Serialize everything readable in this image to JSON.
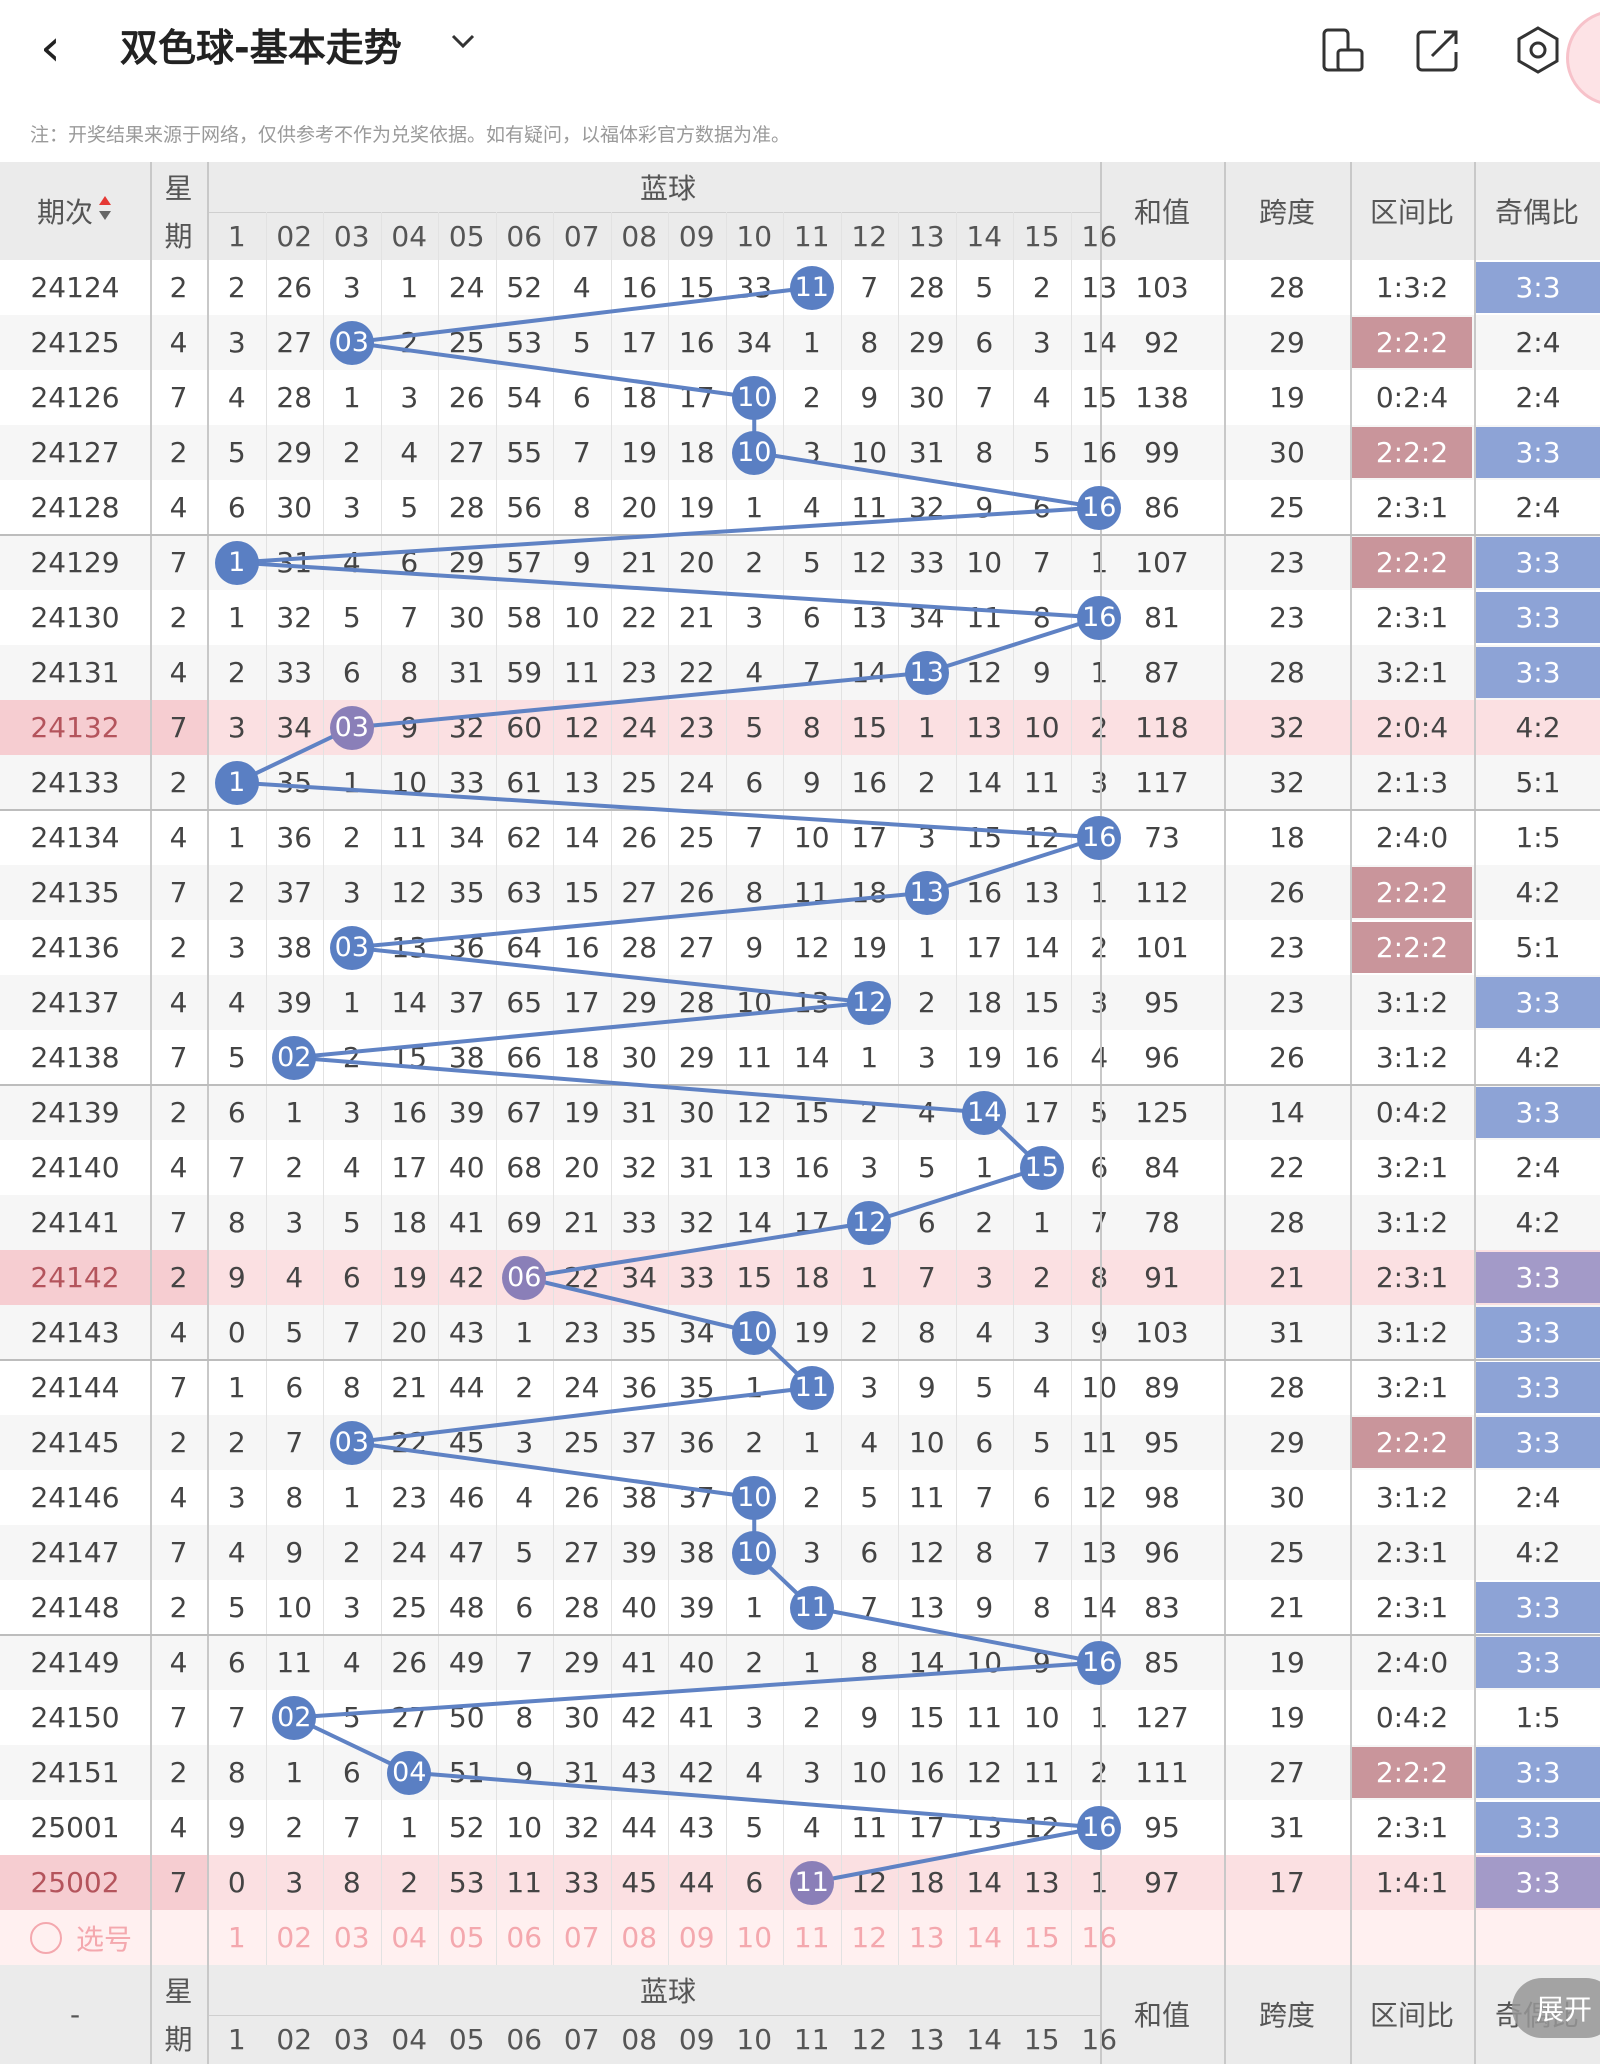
{
  "header": {
    "back_glyph": "‹",
    "title": "双色球-基本走势",
    "icons": [
      "screen-rotate-icon",
      "share-icon",
      "settings-icon",
      "avatar"
    ]
  },
  "note": "注：开奖结果来源于网络，仅供参考不作为兑奖依据。如有疑问，以福体彩官方数据为准。",
  "table": {
    "col_period": "期次",
    "col_week": [
      "星",
      "期"
    ],
    "col_blue": "蓝球",
    "col_sum": "和值",
    "col_span": "跨度",
    "col_zone": "区间比",
    "col_oddeven": "奇偶比",
    "blue_numbers": [
      "1",
      "02",
      "03",
      "04",
      "05",
      "06",
      "07",
      "08",
      "09",
      "10",
      "11",
      "12",
      "13",
      "14",
      "15",
      "16"
    ],
    "select_label": "选号",
    "footer_period": "-",
    "expand_label": "展开",
    "rows": [
      {
        "p": "24124",
        "w": "2",
        "c": [
          "2",
          "26",
          "3",
          "1",
          "24",
          "52",
          "4",
          "16",
          "15",
          "33",
          "11",
          "7",
          "28",
          "5",
          "2",
          "13"
        ],
        "b": 11,
        "s": "103",
        "sp": "28",
        "z": "1:3:2",
        "oe": "3:3",
        "zh": false,
        "oh": true,
        "hl": false
      },
      {
        "p": "24125",
        "w": "4",
        "c": [
          "3",
          "27",
          "03",
          "2",
          "25",
          "53",
          "5",
          "17",
          "16",
          "34",
          "1",
          "8",
          "29",
          "6",
          "3",
          "14"
        ],
        "b": 3,
        "s": "92",
        "sp": "29",
        "z": "2:2:2",
        "oe": "2:4",
        "zh": true,
        "oh": false,
        "hl": false
      },
      {
        "p": "24126",
        "w": "7",
        "c": [
          "4",
          "28",
          "1",
          "3",
          "26",
          "54",
          "6",
          "18",
          "17",
          "10",
          "2",
          "9",
          "30",
          "7",
          "4",
          "15"
        ],
        "b": 10,
        "s": "138",
        "sp": "19",
        "z": "0:2:4",
        "oe": "2:4",
        "zh": false,
        "oh": false,
        "hl": false
      },
      {
        "p": "24127",
        "w": "2",
        "c": [
          "5",
          "29",
          "2",
          "4",
          "27",
          "55",
          "7",
          "19",
          "18",
          "10",
          "3",
          "10",
          "31",
          "8",
          "5",
          "16"
        ],
        "b": 10,
        "s": "99",
        "sp": "30",
        "z": "2:2:2",
        "oe": "3:3",
        "zh": true,
        "oh": true,
        "hl": false
      },
      {
        "p": "24128",
        "w": "4",
        "c": [
          "6",
          "30",
          "3",
          "5",
          "28",
          "56",
          "8",
          "20",
          "19",
          "1",
          "4",
          "11",
          "32",
          "9",
          "6",
          "16"
        ],
        "b": 16,
        "s": "86",
        "sp": "25",
        "z": "2:3:1",
        "oe": "2:4",
        "zh": false,
        "oh": false,
        "hl": false
      },
      {
        "p": "24129",
        "w": "7",
        "c": [
          "1",
          "31",
          "4",
          "6",
          "29",
          "57",
          "9",
          "21",
          "20",
          "2",
          "5",
          "12",
          "33",
          "10",
          "7",
          "1"
        ],
        "b": 1,
        "s": "107",
        "sp": "23",
        "z": "2:2:2",
        "oe": "3:3",
        "zh": true,
        "oh": true,
        "hl": false
      },
      {
        "p": "24130",
        "w": "2",
        "c": [
          "1",
          "32",
          "5",
          "7",
          "30",
          "58",
          "10",
          "22",
          "21",
          "3",
          "6",
          "13",
          "34",
          "11",
          "8",
          "16"
        ],
        "b": 16,
        "s": "81",
        "sp": "23",
        "z": "2:3:1",
        "oe": "3:3",
        "zh": false,
        "oh": true,
        "hl": false
      },
      {
        "p": "24131",
        "w": "4",
        "c": [
          "2",
          "33",
          "6",
          "8",
          "31",
          "59",
          "11",
          "23",
          "22",
          "4",
          "7",
          "14",
          "13",
          "12",
          "9",
          "1"
        ],
        "b": 13,
        "s": "87",
        "sp": "28",
        "z": "3:2:1",
        "oe": "3:3",
        "zh": false,
        "oh": true,
        "hl": false
      },
      {
        "p": "24132",
        "w": "7",
        "c": [
          "3",
          "34",
          "03",
          "9",
          "32",
          "60",
          "12",
          "24",
          "23",
          "5",
          "8",
          "15",
          "1",
          "13",
          "10",
          "2"
        ],
        "b": 3,
        "s": "118",
        "sp": "32",
        "z": "2:0:4",
        "oe": "4:2",
        "zh": false,
        "oh": false,
        "hl": true
      },
      {
        "p": "24133",
        "w": "2",
        "c": [
          "1",
          "35",
          "1",
          "10",
          "33",
          "61",
          "13",
          "25",
          "24",
          "6",
          "9",
          "16",
          "2",
          "14",
          "11",
          "3"
        ],
        "b": 1,
        "s": "117",
        "sp": "32",
        "z": "2:1:3",
        "oe": "5:1",
        "zh": false,
        "oh": false,
        "hl": false
      },
      {
        "p": "24134",
        "w": "4",
        "c": [
          "1",
          "36",
          "2",
          "11",
          "34",
          "62",
          "14",
          "26",
          "25",
          "7",
          "10",
          "17",
          "3",
          "15",
          "12",
          "16"
        ],
        "b": 16,
        "s": "73",
        "sp": "18",
        "z": "2:4:0",
        "oe": "1:5",
        "zh": false,
        "oh": false,
        "hl": false
      },
      {
        "p": "24135",
        "w": "7",
        "c": [
          "2",
          "37",
          "3",
          "12",
          "35",
          "63",
          "15",
          "27",
          "26",
          "8",
          "11",
          "18",
          "13",
          "16",
          "13",
          "1"
        ],
        "b": 13,
        "s": "112",
        "sp": "26",
        "z": "2:2:2",
        "oe": "4:2",
        "zh": true,
        "oh": false,
        "hl": false
      },
      {
        "p": "24136",
        "w": "2",
        "c": [
          "3",
          "38",
          "03",
          "13",
          "36",
          "64",
          "16",
          "28",
          "27",
          "9",
          "12",
          "19",
          "1",
          "17",
          "14",
          "2"
        ],
        "b": 3,
        "s": "101",
        "sp": "23",
        "z": "2:2:2",
        "oe": "5:1",
        "zh": true,
        "oh": false,
        "hl": false
      },
      {
        "p": "24137",
        "w": "4",
        "c": [
          "4",
          "39",
          "1",
          "14",
          "37",
          "65",
          "17",
          "29",
          "28",
          "10",
          "13",
          "12",
          "2",
          "18",
          "15",
          "3"
        ],
        "b": 12,
        "s": "95",
        "sp": "23",
        "z": "3:1:2",
        "oe": "3:3",
        "zh": false,
        "oh": true,
        "hl": false
      },
      {
        "p": "24138",
        "w": "7",
        "c": [
          "5",
          "02",
          "2",
          "15",
          "38",
          "66",
          "18",
          "30",
          "29",
          "11",
          "14",
          "1",
          "3",
          "19",
          "16",
          "4"
        ],
        "b": 2,
        "s": "96",
        "sp": "26",
        "z": "3:1:2",
        "oe": "4:2",
        "zh": false,
        "oh": false,
        "hl": false
      },
      {
        "p": "24139",
        "w": "2",
        "c": [
          "6",
          "1",
          "3",
          "16",
          "39",
          "67",
          "19",
          "31",
          "30",
          "12",
          "15",
          "2",
          "4",
          "14",
          "17",
          "5"
        ],
        "b": 14,
        "s": "125",
        "sp": "14",
        "z": "0:4:2",
        "oe": "3:3",
        "zh": false,
        "oh": true,
        "hl": false
      },
      {
        "p": "24140",
        "w": "4",
        "c": [
          "7",
          "2",
          "4",
          "17",
          "40",
          "68",
          "20",
          "32",
          "31",
          "13",
          "16",
          "3",
          "5",
          "1",
          "15",
          "6"
        ],
        "b": 15,
        "s": "84",
        "sp": "22",
        "z": "3:2:1",
        "oe": "2:4",
        "zh": false,
        "oh": false,
        "hl": false
      },
      {
        "p": "24141",
        "w": "7",
        "c": [
          "8",
          "3",
          "5",
          "18",
          "41",
          "69",
          "21",
          "33",
          "32",
          "14",
          "17",
          "12",
          "6",
          "2",
          "1",
          "7"
        ],
        "b": 12,
        "s": "78",
        "sp": "28",
        "z": "3:1:2",
        "oe": "4:2",
        "zh": false,
        "oh": false,
        "hl": false
      },
      {
        "p": "24142",
        "w": "2",
        "c": [
          "9",
          "4",
          "6",
          "19",
          "42",
          "06",
          "22",
          "34",
          "33",
          "15",
          "18",
          "1",
          "7",
          "3",
          "2",
          "8"
        ],
        "b": 6,
        "s": "91",
        "sp": "21",
        "z": "2:3:1",
        "oe": "3:3",
        "zh": false,
        "oh": true,
        "hl": true
      },
      {
        "p": "24143",
        "w": "4",
        "c": [
          "0",
          "5",
          "7",
          "20",
          "43",
          "1",
          "23",
          "35",
          "34",
          "10",
          "19",
          "2",
          "8",
          "4",
          "3",
          "9"
        ],
        "b": 10,
        "s": "103",
        "sp": "31",
        "z": "3:1:2",
        "oe": "3:3",
        "zh": false,
        "oh": true,
        "hl": false
      },
      {
        "p": "24144",
        "w": "7",
        "c": [
          "1",
          "6",
          "8",
          "21",
          "44",
          "2",
          "24",
          "36",
          "35",
          "1",
          "11",
          "3",
          "9",
          "5",
          "4",
          "10"
        ],
        "b": 11,
        "s": "89",
        "sp": "28",
        "z": "3:2:1",
        "oe": "3:3",
        "zh": false,
        "oh": true,
        "hl": false
      },
      {
        "p": "24145",
        "w": "2",
        "c": [
          "2",
          "7",
          "03",
          "22",
          "45",
          "3",
          "25",
          "37",
          "36",
          "2",
          "1",
          "4",
          "10",
          "6",
          "5",
          "11"
        ],
        "b": 3,
        "s": "95",
        "sp": "29",
        "z": "2:2:2",
        "oe": "3:3",
        "zh": true,
        "oh": true,
        "hl": false
      },
      {
        "p": "24146",
        "w": "4",
        "c": [
          "3",
          "8",
          "1",
          "23",
          "46",
          "4",
          "26",
          "38",
          "37",
          "10",
          "2",
          "5",
          "11",
          "7",
          "6",
          "12"
        ],
        "b": 10,
        "s": "98",
        "sp": "30",
        "z": "3:1:2",
        "oe": "2:4",
        "zh": false,
        "oh": false,
        "hl": false
      },
      {
        "p": "24147",
        "w": "7",
        "c": [
          "4",
          "9",
          "2",
          "24",
          "47",
          "5",
          "27",
          "39",
          "38",
          "10",
          "3",
          "6",
          "12",
          "8",
          "7",
          "13"
        ],
        "b": 10,
        "s": "96",
        "sp": "25",
        "z": "2:3:1",
        "oe": "4:2",
        "zh": false,
        "oh": false,
        "hl": false
      },
      {
        "p": "24148",
        "w": "2",
        "c": [
          "5",
          "10",
          "3",
          "25",
          "48",
          "6",
          "28",
          "40",
          "39",
          "1",
          "11",
          "7",
          "13",
          "9",
          "8",
          "14"
        ],
        "b": 11,
        "s": "83",
        "sp": "21",
        "z": "2:3:1",
        "oe": "3:3",
        "zh": false,
        "oh": true,
        "hl": false
      },
      {
        "p": "24149",
        "w": "4",
        "c": [
          "6",
          "11",
          "4",
          "26",
          "49",
          "7",
          "29",
          "41",
          "40",
          "2",
          "1",
          "8",
          "14",
          "10",
          "9",
          "16"
        ],
        "b": 16,
        "s": "85",
        "sp": "19",
        "z": "2:4:0",
        "oe": "3:3",
        "zh": false,
        "oh": true,
        "hl": false
      },
      {
        "p": "24150",
        "w": "7",
        "c": [
          "7",
          "02",
          "5",
          "27",
          "50",
          "8",
          "30",
          "42",
          "41",
          "3",
          "2",
          "9",
          "15",
          "11",
          "10",
          "1"
        ],
        "b": 2,
        "s": "127",
        "sp": "19",
        "z": "0:4:2",
        "oe": "1:5",
        "zh": false,
        "oh": false,
        "hl": false
      },
      {
        "p": "24151",
        "w": "2",
        "c": [
          "8",
          "1",
          "6",
          "04",
          "51",
          "9",
          "31",
          "43",
          "42",
          "4",
          "3",
          "10",
          "16",
          "12",
          "11",
          "2"
        ],
        "b": 4,
        "s": "111",
        "sp": "27",
        "z": "2:2:2",
        "oe": "3:3",
        "zh": true,
        "oh": true,
        "hl": false
      },
      {
        "p": "25001",
        "w": "4",
        "c": [
          "9",
          "2",
          "7",
          "1",
          "52",
          "10",
          "32",
          "44",
          "43",
          "5",
          "4",
          "11",
          "17",
          "13",
          "12",
          "16"
        ],
        "b": 16,
        "s": "95",
        "sp": "31",
        "z": "2:3:1",
        "oe": "3:3",
        "zh": false,
        "oh": true,
        "hl": false
      },
      {
        "p": "25002",
        "w": "7",
        "c": [
          "0",
          "3",
          "8",
          "2",
          "53",
          "11",
          "33",
          "45",
          "44",
          "6",
          "11",
          "12",
          "18",
          "14",
          "13",
          "1"
        ],
        "b": 11,
        "s": "97",
        "sp": "17",
        "z": "1:4:1",
        "oe": "3:3",
        "zh": false,
        "oh": true,
        "hl": true
      }
    ]
  },
  "colors": {
    "ball": "#5a7fc3",
    "ball_hl": "#8a7fb8",
    "line": "#5f82c4",
    "zone_hl": "#c9959b",
    "oe_hl": "#8da3d6",
    "oe_hl_row": "#a39ac8",
    "row_hl": "#fbe0e2",
    "grid": "#c8c8c8",
    "period_hl": "#f6cdd1",
    "select_row": "#fff0f0",
    "select_text": "#f4a8ae"
  }
}
